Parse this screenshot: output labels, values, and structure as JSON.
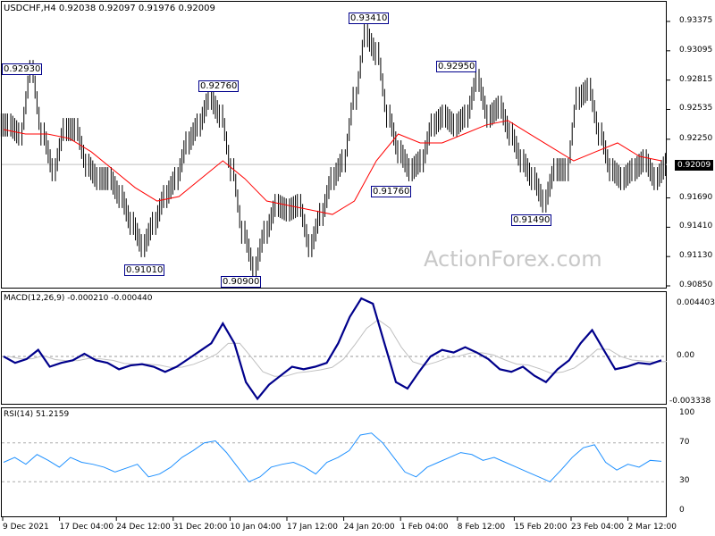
{
  "header": "USDCHF,H4  0.92038 0.92097 0.91976 0.92009",
  "watermark": "ActionForex.com",
  "current_price": "0.92009",
  "colors": {
    "bars": "#000000",
    "ma": "#ff0000",
    "macd": "#00008b",
    "signal": "#c0c0c0",
    "rsi": "#1e90ff"
  },
  "chart_data": [
    {
      "type": "line",
      "title": "USDCHF,H4",
      "ylim": [
        0.9085,
        0.935
      ],
      "yticks": [
        "0.93375",
        "0.93095",
        "0.92815",
        "0.92535",
        "0.92250",
        "0.91970",
        "0.91690",
        "0.91410",
        "0.91130",
        "0.90850"
      ],
      "xticks": [
        "9 Dec 2021",
        "17 Dec 04:00",
        "24 Dec 12:00",
        "31 Dec 20:00",
        "10 Jan 04:00",
        "17 Jan 12:00",
        "24 Jan 20:00",
        "1 Feb 04:00",
        "8 Feb 12:00",
        "15 Feb 20:00",
        "23 Feb 04:00",
        "2 Mar 12:00"
      ],
      "close": [
        0.92386,
        0.923,
        0.92897,
        0.923,
        0.91959,
        0.92343,
        0.92343,
        0.92002,
        0.91874,
        0.91874,
        0.91703,
        0.91447,
        0.91234,
        0.91447,
        0.91703,
        0.91874,
        0.92215,
        0.92386,
        0.92641,
        0.92471,
        0.91959,
        0.91362,
        0.91021,
        0.91362,
        0.91618,
        0.91575,
        0.91618,
        0.91234,
        0.91532,
        0.91874,
        0.92044,
        0.92641,
        0.93239,
        0.93068,
        0.92471,
        0.9213,
        0.91959,
        0.92044,
        0.92386,
        0.92471,
        0.92386,
        0.92471,
        0.92812,
        0.92471,
        0.92556,
        0.923,
        0.92044,
        0.91874,
        0.9166,
        0.91959,
        0.91959,
        0.92641,
        0.92727,
        0.923,
        0.91959,
        0.91874,
        0.91959,
        0.92044,
        0.91874,
        0.92009
      ],
      "ma": [
        0.92343,
        0.923,
        0.923,
        0.92258,
        0.9213,
        0.91959,
        0.91788,
        0.9166,
        0.91703,
        0.91874,
        0.92044,
        0.91874,
        0.9166,
        0.91618,
        0.91575,
        0.91532,
        0.9166,
        0.92044,
        0.923,
        0.92215,
        0.92215,
        0.923,
        0.92386,
        0.92429,
        0.923,
        0.92172,
        0.92044,
        0.9213,
        0.92215,
        0.92087,
        0.92044
      ],
      "annotations": [
        "0.92930",
        "0.92760",
        "0.91010",
        "0.90900",
        "0.93410",
        "0.91760",
        "0.92950",
        "0.91490"
      ]
    },
    {
      "type": "line",
      "title": "MACD(12,26,9) -0.000210 -0.000440",
      "ylim": [
        -0.003338,
        0.004403
      ],
      "yticks": [
        "0.004403",
        "0.00",
        "-0.003338"
      ],
      "macd": [
        0.0,
        -0.0005,
        -0.0002,
        0.0005,
        -0.0008,
        -0.0005,
        -0.0003,
        0.0002,
        -0.0003,
        -0.0005,
        -0.001,
        -0.0007,
        -0.0006,
        -0.0008,
        -0.0012,
        -0.0008,
        -0.0002,
        0.0004,
        0.001,
        0.0025,
        0.001,
        -0.002,
        -0.0033,
        -0.0022,
        -0.0015,
        -0.0008,
        -0.001,
        -0.0008,
        -0.0005,
        0.001,
        0.003,
        0.0044,
        0.004,
        0.001,
        -0.002,
        -0.0025,
        -0.0012,
        0.0,
        0.0005,
        0.0003,
        0.0007,
        0.0003,
        -0.0002,
        -0.001,
        -0.0012,
        -0.0008,
        -0.0015,
        -0.002,
        -0.001,
        -0.0003,
        0.001,
        0.002,
        0.0005,
        -0.001,
        -0.0008,
        -0.0005,
        -0.0006,
        -0.0003
      ]
    },
    {
      "type": "line",
      "title": "RSI(14) 51.2159",
      "ylim": [
        0,
        100
      ],
      "yticks": [
        "100",
        "70",
        "30",
        "0"
      ],
      "rsi": [
        50,
        55,
        48,
        58,
        52,
        45,
        55,
        50,
        48,
        45,
        40,
        44,
        48,
        35,
        38,
        45,
        55,
        62,
        70,
        72,
        60,
        45,
        30,
        35,
        45,
        48,
        50,
        45,
        38,
        50,
        55,
        62,
        78,
        80,
        70,
        55,
        40,
        35,
        45,
        50,
        55,
        60,
        58,
        52,
        55,
        50,
        45,
        40,
        35,
        30,
        42,
        55,
        65,
        68,
        50,
        42,
        48,
        45,
        52,
        51
      ]
    }
  ]
}
